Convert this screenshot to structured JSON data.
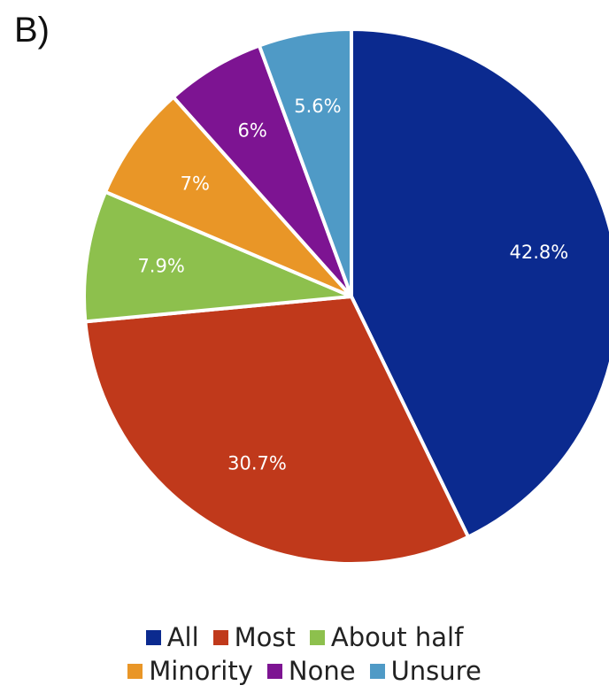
{
  "panel_label": "B)",
  "chart_data": {
    "type": "pie",
    "title": "",
    "slices": [
      {
        "label": "All",
        "value": 42.8,
        "display": "42.8%",
        "color": "#0b2a8f"
      },
      {
        "label": "Most",
        "value": 30.7,
        "display": "30.7%",
        "color": "#c0391b"
      },
      {
        "label": "About half",
        "value": 7.9,
        "display": "7.9%",
        "color": "#8dc04d"
      },
      {
        "label": "Minority",
        "value": 7.0,
        "display": "7%",
        "color": "#e99627"
      },
      {
        "label": "None",
        "value": 6.0,
        "display": "6%",
        "color": "#7d1492"
      },
      {
        "label": "Unsure",
        "value": 5.6,
        "display": "5.6%",
        "color": "#4f9ac6"
      }
    ],
    "start": "12 o'clock",
    "direction": "clockwise",
    "legend_position": "bottom"
  }
}
